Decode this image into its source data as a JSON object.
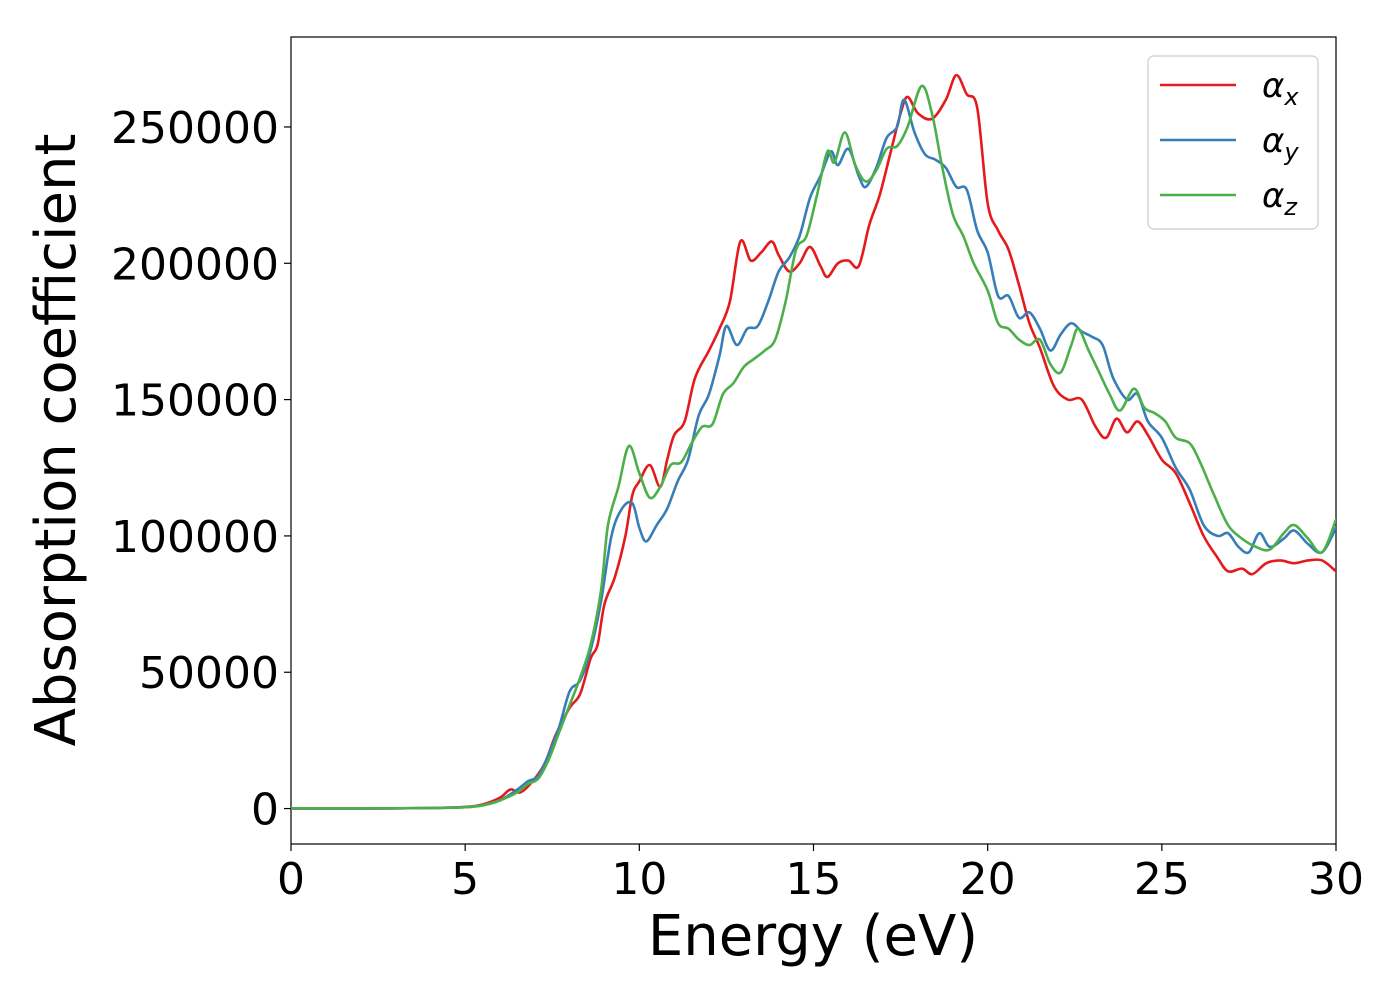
{
  "chart_data": {
    "type": "line",
    "title": "",
    "xlabel": "Energy (eV)",
    "ylabel": "Absorption coefficient",
    "xlim": [
      0,
      30
    ],
    "ylim": [
      -13000,
      283000
    ],
    "xticks": [
      0,
      5,
      10,
      15,
      20,
      25,
      30
    ],
    "yticks": [
      0,
      50000,
      100000,
      150000,
      200000,
      250000
    ],
    "grid": false,
    "legend_position": "top-right",
    "series": [
      {
        "name": "α",
        "subscript": "x",
        "color": "#e41a1c",
        "points": [
          [
            0,
            0
          ],
          [
            2,
            0
          ],
          [
            4,
            200
          ],
          [
            5,
            600
          ],
          [
            5.5,
            1500
          ],
          [
            6,
            4000
          ],
          [
            6.3,
            7000
          ],
          [
            6.6,
            6000
          ],
          [
            7,
            11000
          ],
          [
            7.3,
            17000
          ],
          [
            7.6,
            27000
          ],
          [
            8,
            37000
          ],
          [
            8.3,
            42000
          ],
          [
            8.6,
            55000
          ],
          [
            8.8,
            60000
          ],
          [
            9,
            75000
          ],
          [
            9.3,
            85000
          ],
          [
            9.6,
            100000
          ],
          [
            9.8,
            115000
          ],
          [
            10,
            120000
          ],
          [
            10.3,
            126000
          ],
          [
            10.6,
            118000
          ],
          [
            10.8,
            128000
          ],
          [
            11,
            137000
          ],
          [
            11.3,
            142000
          ],
          [
            11.6,
            158000
          ],
          [
            12,
            168000
          ],
          [
            12.3,
            176000
          ],
          [
            12.6,
            186000
          ],
          [
            12.9,
            208000
          ],
          [
            13.2,
            201000
          ],
          [
            13.5,
            204000
          ],
          [
            13.8,
            208000
          ],
          [
            14,
            203000
          ],
          [
            14.3,
            197000
          ],
          [
            14.6,
            200000
          ],
          [
            14.9,
            206000
          ],
          [
            15.2,
            199000
          ],
          [
            15.4,
            195000
          ],
          [
            15.7,
            200000
          ],
          [
            16,
            201000
          ],
          [
            16.3,
            199000
          ],
          [
            16.6,
            214000
          ],
          [
            16.9,
            225000
          ],
          [
            17.2,
            240000
          ],
          [
            17.5,
            255000
          ],
          [
            17.7,
            261000
          ],
          [
            18,
            255000
          ],
          [
            18.4,
            253000
          ],
          [
            18.8,
            260000
          ],
          [
            19.1,
            269000
          ],
          [
            19.4,
            262000
          ],
          [
            19.7,
            257000
          ],
          [
            20,
            222000
          ],
          [
            20.3,
            212000
          ],
          [
            20.6,
            205000
          ],
          [
            20.9,
            192000
          ],
          [
            21.2,
            178000
          ],
          [
            21.5,
            169000
          ],
          [
            21.9,
            155000
          ],
          [
            22.3,
            150000
          ],
          [
            22.7,
            150000
          ],
          [
            23.1,
            140000
          ],
          [
            23.4,
            136000
          ],
          [
            23.7,
            143000
          ],
          [
            24,
            138000
          ],
          [
            24.3,
            142000
          ],
          [
            24.6,
            137000
          ],
          [
            25,
            128000
          ],
          [
            25.4,
            123000
          ],
          [
            25.8,
            112000
          ],
          [
            26.2,
            100000
          ],
          [
            26.6,
            92000
          ],
          [
            26.9,
            87000
          ],
          [
            27.3,
            88000
          ],
          [
            27.6,
            86000
          ],
          [
            28,
            90000
          ],
          [
            28.4,
            91000
          ],
          [
            28.8,
            90000
          ],
          [
            29.2,
            91000
          ],
          [
            29.6,
            91000
          ],
          [
            30,
            87000
          ]
        ]
      },
      {
        "name": "α",
        "subscript": "y",
        "color": "#377eb8",
        "points": [
          [
            0,
            0
          ],
          [
            2,
            0
          ],
          [
            4,
            200
          ],
          [
            5,
            500
          ],
          [
            5.5,
            1200
          ],
          [
            6,
            3000
          ],
          [
            6.5,
            7000
          ],
          [
            6.8,
            10000
          ],
          [
            7.1,
            12000
          ],
          [
            7.4,
            20000
          ],
          [
            7.7,
            30000
          ],
          [
            8,
            43000
          ],
          [
            8.3,
            47000
          ],
          [
            8.6,
            58000
          ],
          [
            8.9,
            76000
          ],
          [
            9.2,
            100000
          ],
          [
            9.5,
            110000
          ],
          [
            9.8,
            112000
          ],
          [
            10,
            103000
          ],
          [
            10.2,
            98000
          ],
          [
            10.5,
            104000
          ],
          [
            10.8,
            110000
          ],
          [
            11.1,
            120000
          ],
          [
            11.4,
            128000
          ],
          [
            11.7,
            144000
          ],
          [
            12,
            152000
          ],
          [
            12.3,
            166000
          ],
          [
            12.5,
            177000
          ],
          [
            12.8,
            170000
          ],
          [
            13.1,
            176000
          ],
          [
            13.4,
            177000
          ],
          [
            13.7,
            186000
          ],
          [
            14,
            197000
          ],
          [
            14.3,
            202000
          ],
          [
            14.6,
            210000
          ],
          [
            14.9,
            224000
          ],
          [
            15.2,
            232000
          ],
          [
            15.5,
            241000
          ],
          [
            15.7,
            236000
          ],
          [
            16,
            242000
          ],
          [
            16.3,
            232000
          ],
          [
            16.5,
            228000
          ],
          [
            16.8,
            235000
          ],
          [
            17.1,
            246000
          ],
          [
            17.4,
            250000
          ],
          [
            17.6,
            260000
          ],
          [
            17.9,
            248000
          ],
          [
            18.2,
            240000
          ],
          [
            18.5,
            238000
          ],
          [
            18.8,
            235000
          ],
          [
            19.1,
            228000
          ],
          [
            19.4,
            227000
          ],
          [
            19.7,
            212000
          ],
          [
            20,
            204000
          ],
          [
            20.3,
            188000
          ],
          [
            20.6,
            188000
          ],
          [
            20.9,
            180000
          ],
          [
            21.2,
            182000
          ],
          [
            21.5,
            176000
          ],
          [
            21.8,
            168000
          ],
          [
            22.1,
            174000
          ],
          [
            22.4,
            178000
          ],
          [
            22.7,
            175000
          ],
          [
            23,
            173000
          ],
          [
            23.3,
            170000
          ],
          [
            23.6,
            158000
          ],
          [
            24,
            150000
          ],
          [
            24.3,
            152000
          ],
          [
            24.6,
            142000
          ],
          [
            25,
            136000
          ],
          [
            25.4,
            125000
          ],
          [
            25.8,
            117000
          ],
          [
            26.2,
            104000
          ],
          [
            26.6,
            100000
          ],
          [
            26.9,
            101000
          ],
          [
            27.2,
            96000
          ],
          [
            27.5,
            94000
          ],
          [
            27.8,
            101000
          ],
          [
            28.1,
            96000
          ],
          [
            28.5,
            99000
          ],
          [
            28.8,
            102000
          ],
          [
            29.2,
            97000
          ],
          [
            29.6,
            94000
          ],
          [
            30,
            103000
          ]
        ]
      },
      {
        "name": "α",
        "subscript": "z",
        "color": "#4daf4a",
        "points": [
          [
            0,
            0
          ],
          [
            2,
            0
          ],
          [
            4,
            200
          ],
          [
            5,
            500
          ],
          [
            5.5,
            1200
          ],
          [
            6,
            3000
          ],
          [
            6.5,
            6000
          ],
          [
            6.8,
            9000
          ],
          [
            7.1,
            11000
          ],
          [
            7.4,
            18000
          ],
          [
            7.7,
            28000
          ],
          [
            8,
            38000
          ],
          [
            8.3,
            48000
          ],
          [
            8.6,
            60000
          ],
          [
            8.9,
            80000
          ],
          [
            9.1,
            104000
          ],
          [
            9.4,
            118000
          ],
          [
            9.7,
            133000
          ],
          [
            10,
            123000
          ],
          [
            10.3,
            114000
          ],
          [
            10.6,
            118000
          ],
          [
            10.9,
            126000
          ],
          [
            11.2,
            127000
          ],
          [
            11.5,
            134000
          ],
          [
            11.8,
            140000
          ],
          [
            12.1,
            141000
          ],
          [
            12.4,
            152000
          ],
          [
            12.7,
            156000
          ],
          [
            13,
            162000
          ],
          [
            13.3,
            165000
          ],
          [
            13.6,
            168000
          ],
          [
            13.9,
            172000
          ],
          [
            14.2,
            186000
          ],
          [
            14.5,
            205000
          ],
          [
            14.8,
            210000
          ],
          [
            15.1,
            225000
          ],
          [
            15.4,
            241000
          ],
          [
            15.6,
            237000
          ],
          [
            15.9,
            248000
          ],
          [
            16.2,
            236000
          ],
          [
            16.5,
            230000
          ],
          [
            16.8,
            234000
          ],
          [
            17.1,
            242000
          ],
          [
            17.4,
            243000
          ],
          [
            17.7,
            250000
          ],
          [
            18.1,
            265000
          ],
          [
            18.4,
            255000
          ],
          [
            18.7,
            235000
          ],
          [
            19,
            218000
          ],
          [
            19.3,
            210000
          ],
          [
            19.6,
            200000
          ],
          [
            20,
            190000
          ],
          [
            20.3,
            178000
          ],
          [
            20.6,
            176000
          ],
          [
            20.9,
            172000
          ],
          [
            21.2,
            170000
          ],
          [
            21.5,
            172000
          ],
          [
            21.8,
            163000
          ],
          [
            22.1,
            160000
          ],
          [
            22.4,
            170000
          ],
          [
            22.6,
            176000
          ],
          [
            22.9,
            168000
          ],
          [
            23.2,
            160000
          ],
          [
            23.5,
            152000
          ],
          [
            23.8,
            146000
          ],
          [
            24.2,
            154000
          ],
          [
            24.5,
            147000
          ],
          [
            24.8,
            145000
          ],
          [
            25.1,
            142000
          ],
          [
            25.4,
            136000
          ],
          [
            25.8,
            134000
          ],
          [
            26.1,
            127000
          ],
          [
            26.5,
            115000
          ],
          [
            26.9,
            104000
          ],
          [
            27.3,
            99000
          ],
          [
            27.7,
            96000
          ],
          [
            28.1,
            95000
          ],
          [
            28.5,
            101000
          ],
          [
            28.8,
            104000
          ],
          [
            29.2,
            99000
          ],
          [
            29.6,
            94000
          ],
          [
            30,
            106000
          ]
        ]
      }
    ]
  }
}
